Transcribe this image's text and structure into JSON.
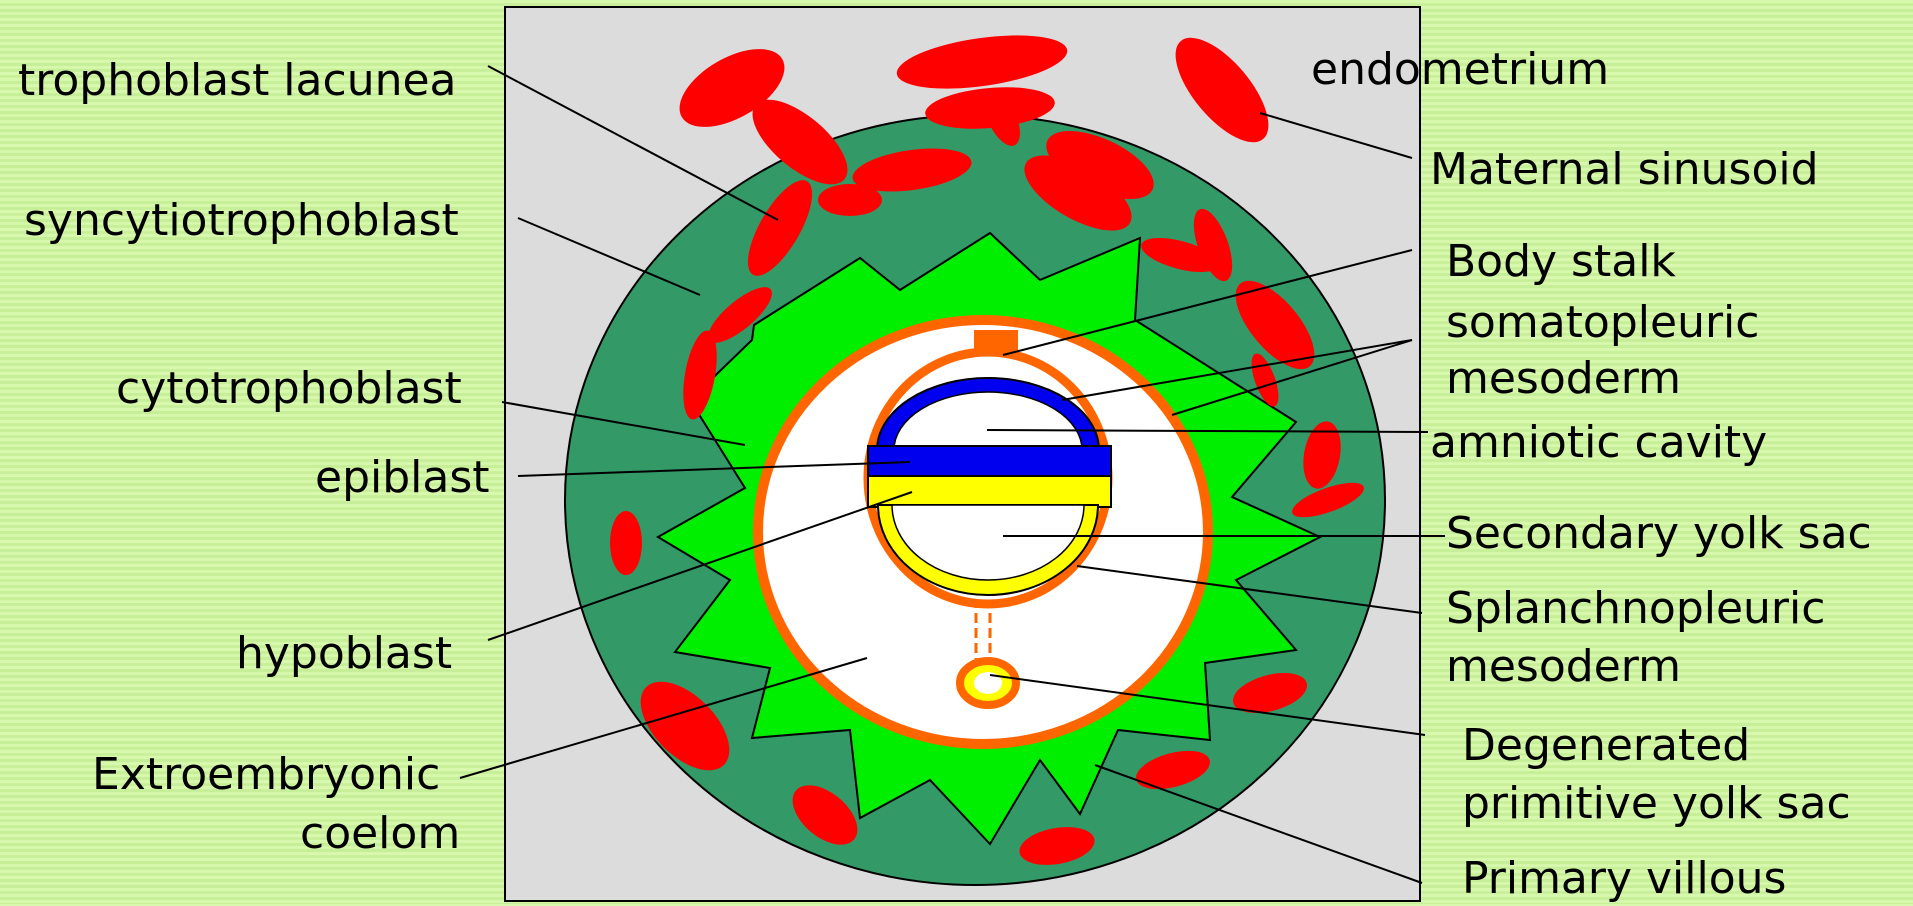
{
  "labels": {
    "trophoblast_lacunea": "trophoblast lacunea",
    "syncytiotrophoblast": "syncytiotrophoblast",
    "cytotrophoblast": "cytotrophoblast",
    "epiblast": "epiblast",
    "hypoblast": "hypoblast",
    "extroembryonic": "Extroembryonic",
    "coelom": "coelom",
    "endometrium": "endometrium",
    "maternal_sinusoid": "Maternal sinusoid",
    "body_stalk": "Body stalk",
    "somatopleuric": "somatopleuric",
    "mesoderm_1": "mesoderm",
    "amniotic_cavity": "amniotic cavity",
    "secondary_yolk_sac": "Secondary yolk sac",
    "splanchnopleuric": "Splanchnopleuric",
    "mesoderm_2": "mesoderm",
    "degenerated": "Degenerated",
    "primitive_yolk_sac": "primitive yolk sac",
    "primary_villous": "Primary villous"
  },
  "colors": {
    "endometrium": "#dcdcdc",
    "syncytiotrophoblast": "#339966",
    "cytotrophoblast": "#00ee00",
    "mesoderm": "#ff6600",
    "lacunae": "#ff0000",
    "epiblast": "#0000ee",
    "hypoblast": "#ffff00",
    "cavity": "#ffffff"
  }
}
